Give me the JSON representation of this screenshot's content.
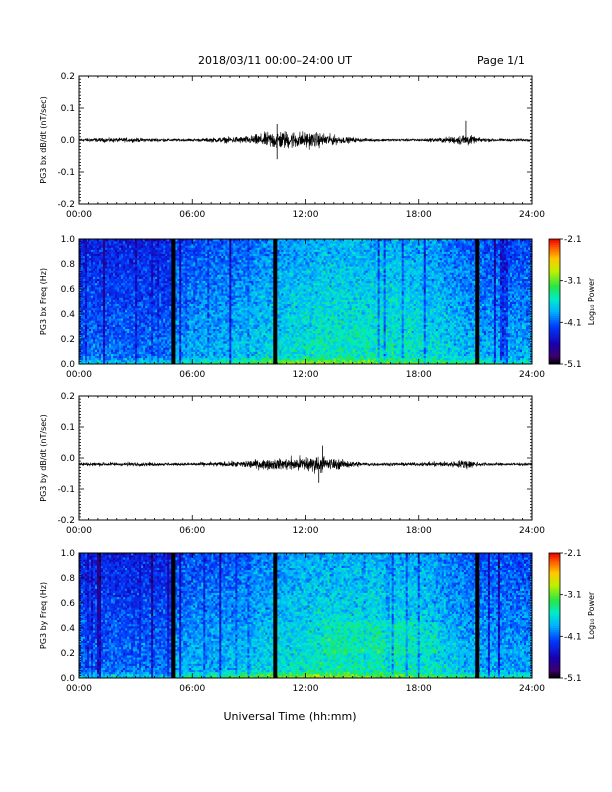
{
  "header": {
    "title": "2018/03/11   00:00–24:00 UT",
    "page": "Page 1/1"
  },
  "xlabel": "Universal Time (hh:mm)",
  "chart_data": [
    {
      "type": "line",
      "ylabel": "PG3 bx dB/dt (nT/sec)",
      "xlim": [
        0,
        24
      ],
      "ylim": [
        -0.2,
        0.2
      ],
      "x_ticks": [
        "00:00",
        "06:00",
        "12:00",
        "18:00",
        "24:00"
      ],
      "y_ticks": [
        "-0.2",
        "-0.1",
        "0.0",
        "0.1",
        "0.2"
      ],
      "baseline": 0.0,
      "envelope": {
        "x": [
          0,
          2,
          4,
          5,
          6,
          7,
          8,
          9,
          10,
          10.5,
          11,
          12,
          13,
          14,
          15,
          16,
          18,
          19,
          20,
          20.5,
          21,
          22,
          24
        ],
        "amp": [
          0.008,
          0.01,
          0.008,
          0.006,
          0.006,
          0.01,
          0.014,
          0.018,
          0.035,
          0.045,
          0.04,
          0.038,
          0.03,
          0.015,
          0.008,
          0.006,
          0.006,
          0.01,
          0.018,
          0.03,
          0.012,
          0.006,
          0.006
        ]
      },
      "spikes": [
        {
          "x": 20.5,
          "y": 0.06
        },
        {
          "x": 10.5,
          "y": 0.05
        },
        {
          "x": 10.5,
          "y": -0.06
        }
      ]
    },
    {
      "type": "heatmap",
      "ylabel": "PG3 bx Freq (Hz)",
      "xlim": [
        0,
        24
      ],
      "ylim": [
        0,
        1
      ],
      "x_ticks": [
        "00:00",
        "06:00",
        "12:00",
        "18:00",
        "24:00"
      ],
      "y_ticks": [
        "0.0",
        "0.2",
        "0.4",
        "0.6",
        "0.8",
        "1.0"
      ],
      "colorbar": {
        "label": "Log₁₀ Power",
        "ticks": [
          "-2.1",
          "-3.1",
          "-4.1",
          "-5.1"
        ],
        "min": -5.1,
        "max": -2.1
      },
      "data_gaps_hours": [
        5.0,
        10.4,
        21.1
      ]
    },
    {
      "type": "line",
      "ylabel": "PG3 by dB/dt (nT/sec)",
      "xlim": [
        0,
        24
      ],
      "ylim": [
        -0.2,
        0.2
      ],
      "x_ticks": [
        "00:00",
        "06:00",
        "12:00",
        "18:00",
        "24:00"
      ],
      "y_ticks": [
        "-0.2",
        "-0.1",
        "0.0",
        "0.1",
        "0.2"
      ],
      "baseline": -0.02,
      "envelope": {
        "x": [
          0,
          2,
          4,
          5,
          6,
          7,
          8,
          9,
          10,
          11,
          12,
          13,
          14,
          15,
          16,
          18,
          19,
          20,
          20.5,
          21,
          22,
          24
        ],
        "amp": [
          0.008,
          0.009,
          0.008,
          0.006,
          0.007,
          0.01,
          0.012,
          0.02,
          0.024,
          0.028,
          0.04,
          0.035,
          0.02,
          0.01,
          0.007,
          0.008,
          0.012,
          0.015,
          0.025,
          0.012,
          0.006,
          0.006
        ]
      },
      "spikes": [
        {
          "x": 12.9,
          "y": 0.04
        },
        {
          "x": 12.7,
          "y": -0.08
        }
      ]
    },
    {
      "type": "heatmap",
      "ylabel": "PG3 by Freq (Hz)",
      "xlim": [
        0,
        24
      ],
      "ylim": [
        0,
        1
      ],
      "x_ticks": [
        "00:00",
        "06:00",
        "12:00",
        "18:00",
        "24:00"
      ],
      "y_ticks": [
        "0.0",
        "0.2",
        "0.4",
        "0.6",
        "0.8",
        "1.0"
      ],
      "colorbar": {
        "label": "Log₁₀ Power",
        "ticks": [
          "-2.1",
          "-3.1",
          "-4.1",
          "-5.1"
        ],
        "min": -5.1,
        "max": -2.1
      },
      "data_gaps_hours": [
        5.0,
        10.4,
        21.1
      ]
    }
  ]
}
